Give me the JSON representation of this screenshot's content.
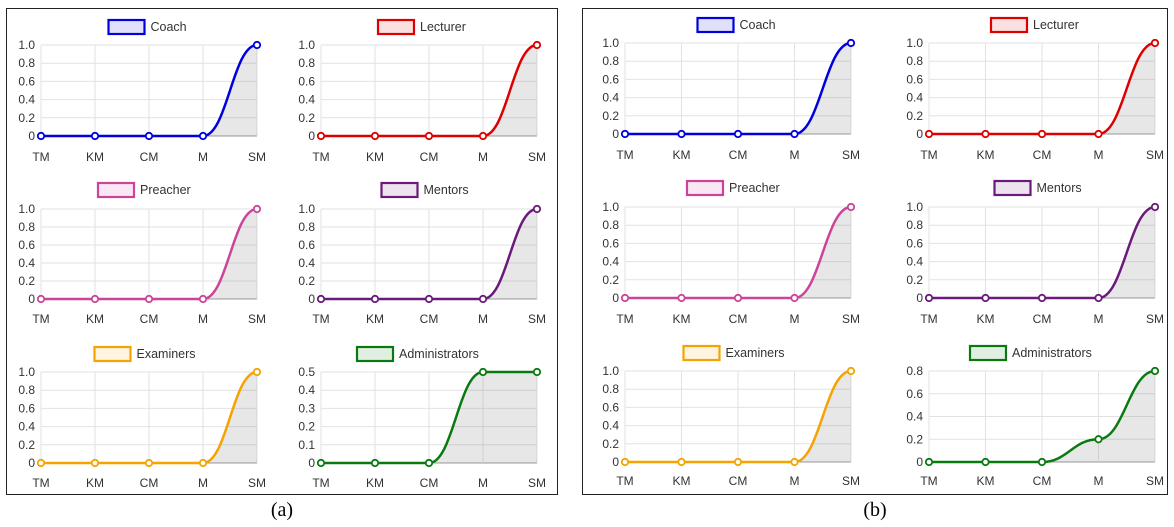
{
  "captions": [
    "(a)",
    "(b)"
  ],
  "chart_data": [
    {
      "panel": "a",
      "type": "line",
      "legend": "Coach",
      "color": "#0000dd",
      "categories": [
        "TM",
        "KM",
        "CM",
        "M",
        "SM"
      ],
      "values": [
        0,
        0,
        0,
        0,
        1.0
      ],
      "yticks": [
        "0",
        "0.2",
        "0.4",
        "0.6",
        "0.8",
        "1.0"
      ],
      "ylim": [
        0,
        1.0
      ]
    },
    {
      "panel": "a",
      "type": "line",
      "legend": "Lecturer",
      "color": "#dd0000",
      "categories": [
        "TM",
        "KM",
        "CM",
        "M",
        "SM"
      ],
      "values": [
        0,
        0,
        0,
        0,
        1.0
      ],
      "yticks": [
        "0",
        "0.2",
        "0.4",
        "0.6",
        "0.8",
        "1.0"
      ],
      "ylim": [
        0,
        1.0
      ]
    },
    {
      "panel": "a",
      "type": "line",
      "legend": "Preacher",
      "color": "#cc4499",
      "categories": [
        "TM",
        "KM",
        "CM",
        "M",
        "SM"
      ],
      "values": [
        0,
        0,
        0,
        0,
        1.0
      ],
      "yticks": [
        "0",
        "0.2",
        "0.4",
        "0.6",
        "0.8",
        "1.0"
      ],
      "ylim": [
        0,
        1.0
      ]
    },
    {
      "panel": "a",
      "type": "line",
      "legend": "Mentors",
      "color": "#6a1a7a",
      "categories": [
        "TM",
        "KM",
        "CM",
        "M",
        "SM"
      ],
      "values": [
        0,
        0,
        0,
        0,
        1.0
      ],
      "yticks": [
        "0",
        "0.2",
        "0.4",
        "0.6",
        "0.8",
        "1.0"
      ],
      "ylim": [
        0,
        1.0
      ]
    },
    {
      "panel": "a",
      "type": "line",
      "legend": "Examiners",
      "color": "#f5a300",
      "categories": [
        "TM",
        "KM",
        "CM",
        "M",
        "SM"
      ],
      "values": [
        0,
        0,
        0,
        0,
        1.0
      ],
      "yticks": [
        "0",
        "0.2",
        "0.4",
        "0.6",
        "0.8",
        "1.0"
      ],
      "ylim": [
        0,
        1.0
      ]
    },
    {
      "panel": "a",
      "type": "line",
      "legend": "Administrators",
      "color": "#0a7a10",
      "categories": [
        "TM",
        "KM",
        "CM",
        "M",
        "SM"
      ],
      "values": [
        0,
        0,
        0,
        0.5,
        0.5
      ],
      "yticks": [
        "0",
        "0.1",
        "0.2",
        "0.3",
        "0.4",
        "0.5"
      ],
      "ylim": [
        0,
        0.5
      ]
    },
    {
      "panel": "b",
      "type": "line",
      "legend": "Coach",
      "color": "#0000dd",
      "categories": [
        "TM",
        "KM",
        "CM",
        "M",
        "SM"
      ],
      "values": [
        0,
        0,
        0,
        0,
        1.0
      ],
      "yticks": [
        "0",
        "0.2",
        "0.4",
        "0.6",
        "0.8",
        "1.0"
      ],
      "ylim": [
        0,
        1.0
      ]
    },
    {
      "panel": "b",
      "type": "line",
      "legend": "Lecturer",
      "color": "#dd0000",
      "categories": [
        "TM",
        "KM",
        "CM",
        "M",
        "SM"
      ],
      "values": [
        0,
        0,
        0,
        0,
        1.0
      ],
      "yticks": [
        "0",
        "0.2",
        "0.4",
        "0.6",
        "0.8",
        "1.0"
      ],
      "ylim": [
        0,
        1.0
      ]
    },
    {
      "panel": "b",
      "type": "line",
      "legend": "Preacher",
      "color": "#cc4499",
      "categories": [
        "TM",
        "KM",
        "CM",
        "M",
        "SM"
      ],
      "values": [
        0,
        0,
        0,
        0,
        1.0
      ],
      "yticks": [
        "0",
        "0.2",
        "0.4",
        "0.6",
        "0.8",
        "1.0"
      ],
      "ylim": [
        0,
        1.0
      ]
    },
    {
      "panel": "b",
      "type": "line",
      "legend": "Mentors",
      "color": "#6a1a7a",
      "categories": [
        "TM",
        "KM",
        "CM",
        "M",
        "SM"
      ],
      "values": [
        0,
        0,
        0,
        0,
        1.0
      ],
      "yticks": [
        "0",
        "0.2",
        "0.4",
        "0.6",
        "0.8",
        "1.0"
      ],
      "ylim": [
        0,
        1.0
      ]
    },
    {
      "panel": "b",
      "type": "line",
      "legend": "Examiners",
      "color": "#f5a300",
      "categories": [
        "TM",
        "KM",
        "CM",
        "M",
        "SM"
      ],
      "values": [
        0,
        0,
        0,
        0,
        1.0
      ],
      "yticks": [
        "0",
        "0.2",
        "0.4",
        "0.6",
        "0.8",
        "1.0"
      ],
      "ylim": [
        0,
        1.0
      ]
    },
    {
      "panel": "b",
      "type": "line",
      "legend": "Administrators",
      "color": "#0a7a10",
      "categories": [
        "TM",
        "KM",
        "CM",
        "M",
        "SM"
      ],
      "values": [
        0,
        0,
        0,
        0.2,
        0.8
      ],
      "yticks": [
        "0",
        "0.2",
        "0.4",
        "0.6",
        "0.8"
      ],
      "ylim": [
        0,
        0.8
      ]
    }
  ]
}
